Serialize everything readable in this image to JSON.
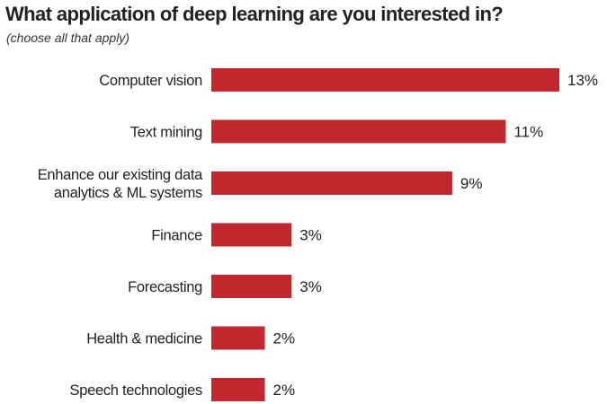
{
  "chart_data": {
    "type": "bar",
    "orientation": "horizontal",
    "title": "What application of deep learning are you interested in?",
    "subtitle": "(choose all that apply)",
    "categories": [
      "Computer vision",
      "Text mining",
      "Enhance our existing data analytics & ML systems",
      "Finance",
      "Forecasting",
      "Health & medicine",
      "Speech technologies"
    ],
    "category_lines": [
      [
        "Computer vision"
      ],
      [
        "Text mining"
      ],
      [
        "Enhance our existing data",
        "analytics & ML systems"
      ],
      [
        "Finance"
      ],
      [
        "Forecasting"
      ],
      [
        "Health & medicine"
      ],
      [
        "Speech technologies"
      ]
    ],
    "values": [
      13,
      11,
      9,
      3,
      3,
      2,
      2
    ],
    "value_labels": [
      "13%",
      "11%",
      "9%",
      "3%",
      "3%",
      "2%",
      "2%"
    ],
    "unit": "%",
    "xlim": [
      0,
      13
    ],
    "grid": false,
    "legend": "none",
    "bar_color": "#c1272d"
  }
}
